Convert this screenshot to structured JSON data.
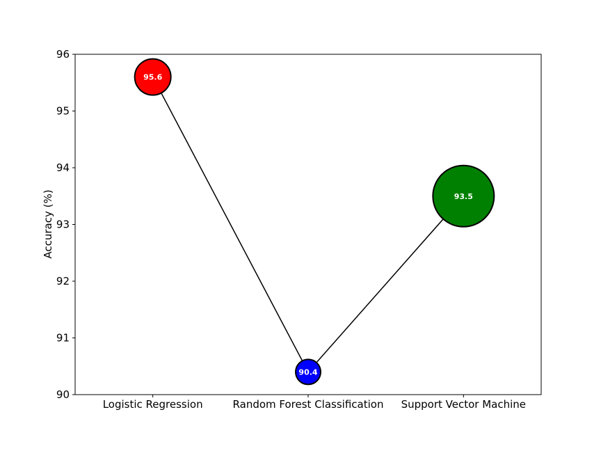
{
  "chart_data": {
    "type": "scatter",
    "title": "",
    "xlabel": "",
    "ylabel": "Accuracy (%)",
    "categories": [
      "Logistic Regression",
      "Random Forest Classification",
      "Support Vector Machine"
    ],
    "values": [
      95.6,
      90.4,
      93.5
    ],
    "data_labels": [
      "95.6",
      "90.4",
      "93.5"
    ],
    "colors": [
      "#ff0000",
      "#0000ff",
      "#008000"
    ],
    "marker_size_rank": [
      2,
      1,
      3
    ],
    "connecting_line": true,
    "ylim": [
      90,
      96
    ],
    "yticks": [
      "90",
      "91",
      "92",
      "93",
      "94",
      "95",
      "96"
    ],
    "grid": false,
    "legend": "none"
  }
}
